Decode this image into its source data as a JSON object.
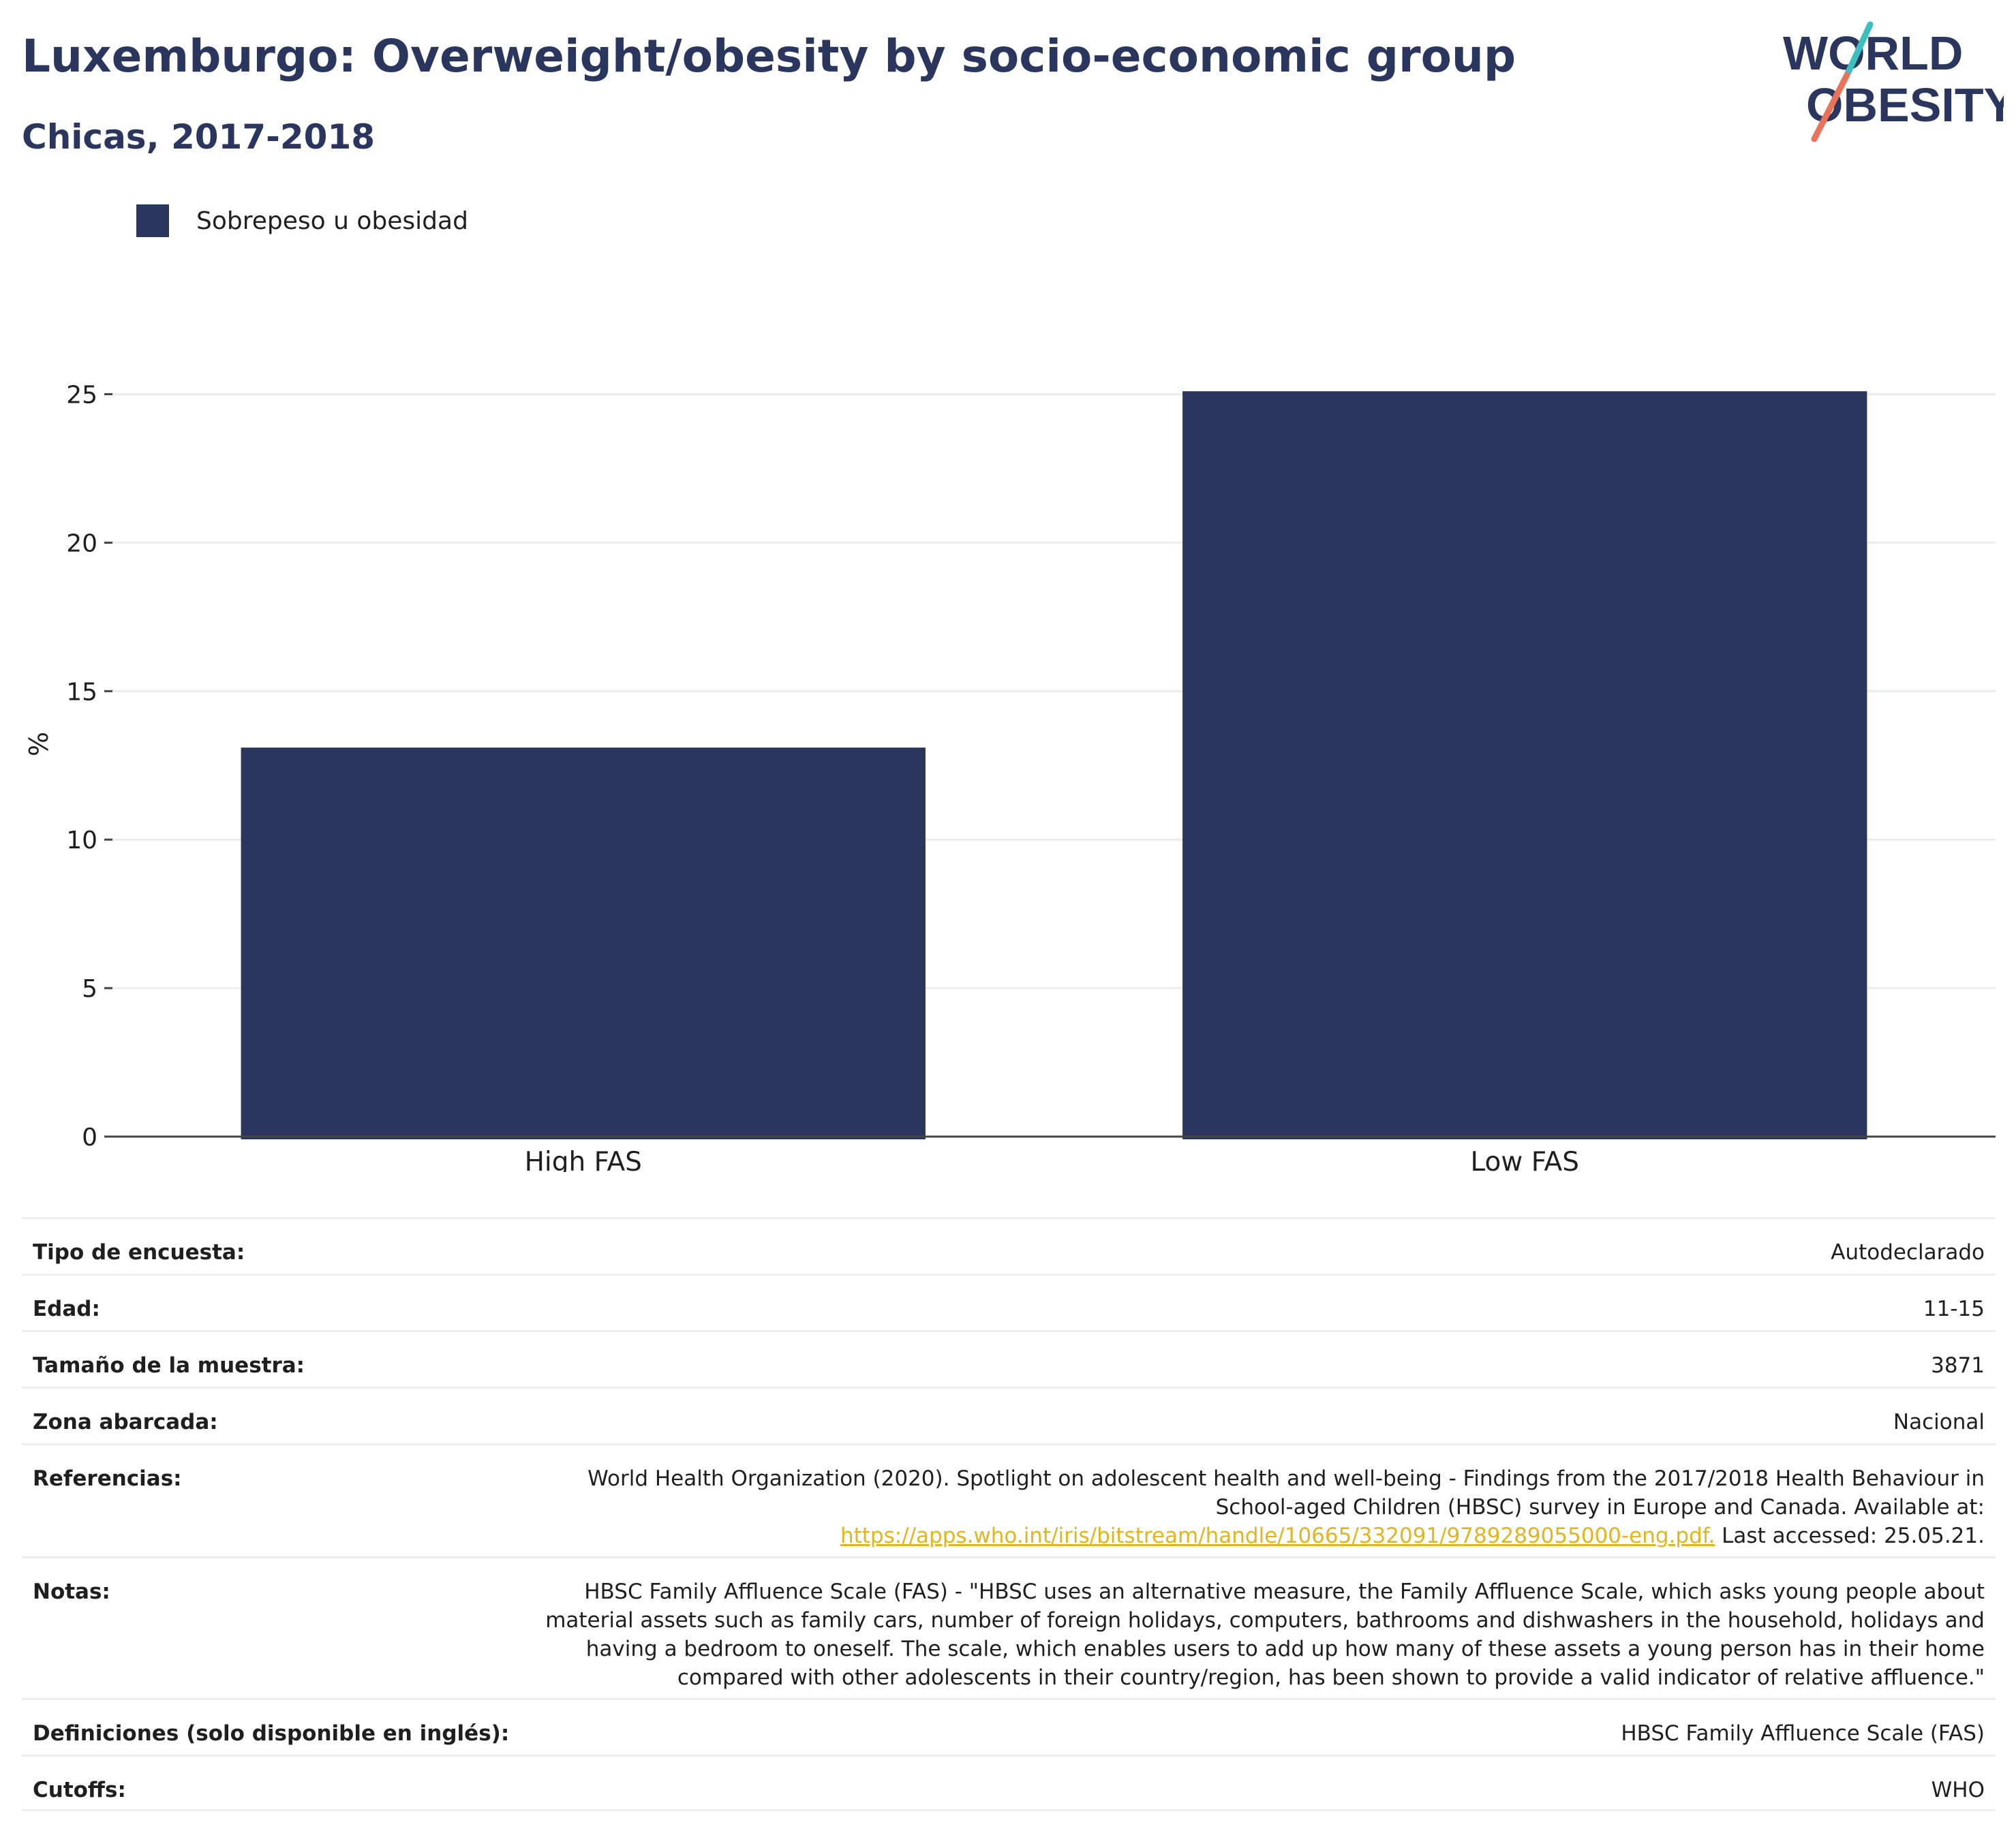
{
  "header": {
    "title": "Luxemburgo: Overweight/obesity by socio-economic group",
    "subtitle": "Chicas, 2017-2018"
  },
  "logo": {
    "line1": "WORLD",
    "line2": "OBESITY",
    "colors": {
      "text": "#2b365f",
      "slash_top": "#3cbfbf",
      "slash_bottom": "#e8735a"
    }
  },
  "colors": {
    "bar": "#2b365f",
    "grid": "#ebebeb",
    "axis": "#444444",
    "text": "#1f1f1f",
    "link": "#e3b51d"
  },
  "chart_data": {
    "type": "bar",
    "title": "Luxemburgo: Overweight/obesity by socio-economic group",
    "subtitle": "Chicas, 2017-2018",
    "categories": [
      "High FAS",
      "Low FAS"
    ],
    "series": [
      {
        "name": "Sobrepeso u obesidad",
        "values": [
          13.1,
          25.1
        ]
      }
    ],
    "ylabel": "%",
    "xlabel": "",
    "ylim": [
      0,
      25.7
    ],
    "yticks": [
      0,
      5,
      10,
      15,
      20,
      25
    ],
    "grid": true,
    "legend_position": "top-left"
  },
  "info": {
    "rows": [
      {
        "label": "Tipo de encuesta:",
        "value": "Autodeclarado"
      },
      {
        "label": "Edad:",
        "value": "11-15"
      },
      {
        "label": "Tamaño de la muestra:",
        "value": "3871"
      },
      {
        "label": "Zona abarcada:",
        "value": "Nacional"
      },
      {
        "label": "Referencias:",
        "value": "World Health Organization (2020). Spotlight on adolescent health and well-being - Findings from the 2017/2018 Health Behaviour in School-aged Children (HBSC) survey in Europe and Canada. Available at: ",
        "link": "https://apps.who.int/iris/bitstream/handle/10665/332091/9789289055000-eng.pdf.",
        "value_after": " Last accessed: 25.05.21."
      },
      {
        "label": "Notas:",
        "value": "HBSC Family Affluence Scale (FAS) - \"HBSC uses an alternative measure, the Family Affluence Scale, which asks young people about material assets such as family cars, number of foreign holidays, computers, bathrooms and dishwashers in the household, holidays and having a bedroom to oneself. The scale, which enables users to add up how many of these assets a young person has in their home compared with other adolescents in their country/region, has been shown to provide a valid indicator of relative affluence.\""
      },
      {
        "label": "Definiciones (solo disponible en inglés):",
        "value": "HBSC Family Affluence Scale (FAS)"
      },
      {
        "label": "Cutoffs:",
        "value": "WHO"
      }
    ]
  }
}
